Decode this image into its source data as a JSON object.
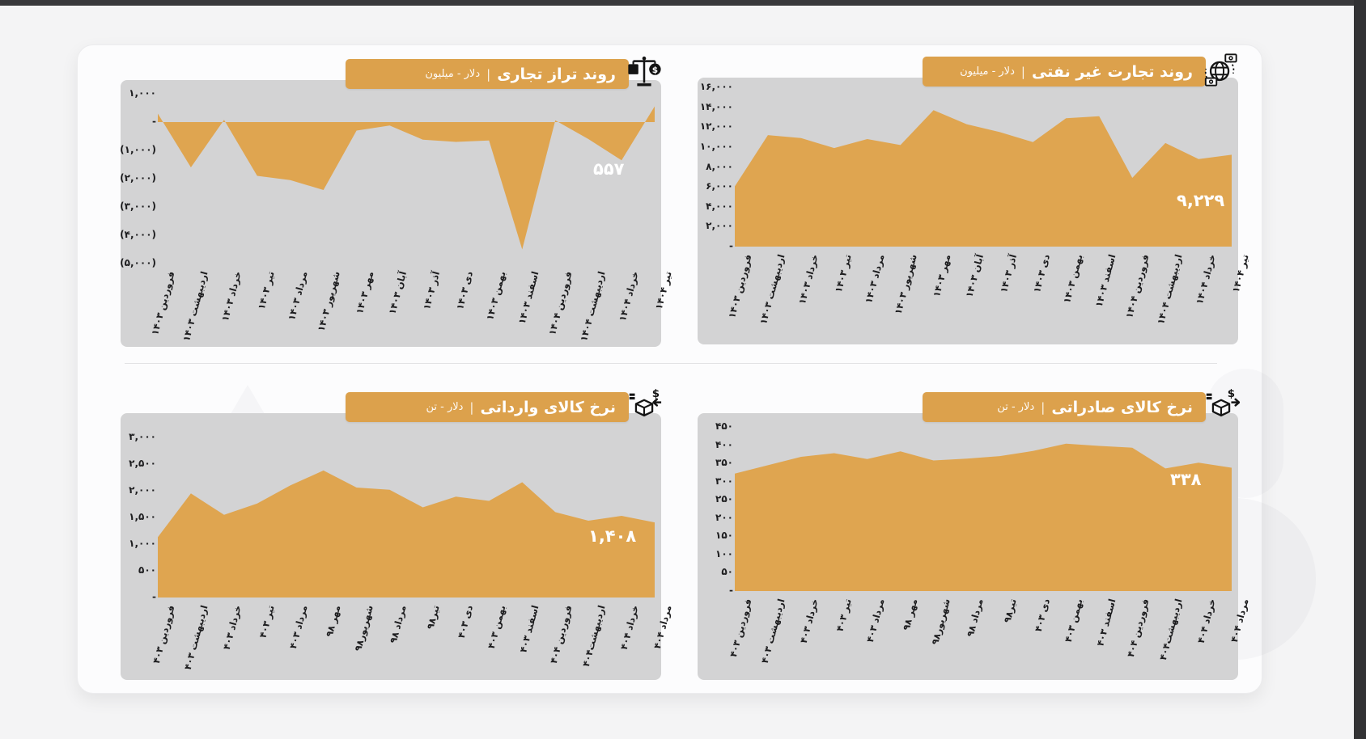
{
  "page": {
    "background": "#f4f4f5",
    "frame_top_color": "#39393b",
    "frame_right_color": "#323234",
    "card_color": "#fcfcfd",
    "panel_color": "#d3d3d4",
    "titlebar_color": "#dca14c",
    "area_color": "#dfa550",
    "icon_color": "#141414",
    "title_separator": "|"
  },
  "chart_data": [
    {
      "id": "trade-balance-trend",
      "type": "area",
      "title": "روند تراز تجاری",
      "unit": "دلار - میلیون",
      "icon": "balance-scale-dollar-icon",
      "value_label": "۵۵۷",
      "latest_value": 557,
      "baseline": "zero",
      "ylim": [
        -5000,
        1000
      ],
      "grid": false,
      "legend": false,
      "y_ticks": [
        {
          "label": "۱,۰۰۰",
          "value": 1000
        },
        {
          "label": "-",
          "value": 0
        },
        {
          "label": "(۱,۰۰۰)",
          "value": -1000
        },
        {
          "label": "(۲,۰۰۰)",
          "value": -2000
        },
        {
          "label": "(۳,۰۰۰)",
          "value": -3000
        },
        {
          "label": "(۴,۰۰۰)",
          "value": -4000
        },
        {
          "label": "(۵,۰۰۰)",
          "value": -5000
        }
      ],
      "categories": [
        "فروردین ۱۴۰۳",
        "اردیبهشت ۱۴۰۳",
        "خرداد ۱۴۰۳",
        "تیر ۱۴۰۳",
        "مرداد ۱۴۰۳",
        "شهریور ۱۴۰۳",
        "مهر ۱۴۰۳",
        "آبان ۱۴۰۳",
        "آذر ۱۴۰۳",
        "دی ۱۴۰۳",
        "بهمن ۱۴۰۳",
        "اسفند ۱۴۰۳",
        "فروردین ۱۴۰۴",
        "اردیبهشت ۱۴۰۴",
        "خرداد ۱۴۰۴",
        "تیر ۱۴۰۴"
      ],
      "values": [
        300,
        -1600,
        80,
        -1900,
        -2050,
        -2400,
        -300,
        -120,
        -620,
        -700,
        -650,
        -4500,
        60,
        -600,
        -1350,
        557
      ]
    },
    {
      "id": "non-oil-trade-trend",
      "type": "area",
      "title": "روند تجارت غیر نفتی",
      "unit": "دلار - میلیون",
      "icon": "globe-money-icon",
      "value_label": "۹,۲۲۹",
      "latest_value": 9229,
      "baseline": "bottom",
      "ylim": [
        0,
        16000
      ],
      "grid": false,
      "legend": false,
      "y_ticks": [
        {
          "label": "۱۶,۰۰۰",
          "value": 16000
        },
        {
          "label": "۱۴,۰۰۰",
          "value": 14000
        },
        {
          "label": "۱۲,۰۰۰",
          "value": 12000
        },
        {
          "label": "۱۰,۰۰۰",
          "value": 10000
        },
        {
          "label": "۸,۰۰۰",
          "value": 8000
        },
        {
          "label": "۶,۰۰۰",
          "value": 6000
        },
        {
          "label": "۴,۰۰۰",
          "value": 4000
        },
        {
          "label": "۲,۰۰۰",
          "value": 2000
        },
        {
          "label": "-",
          "value": 0
        }
      ],
      "categories": [
        "فروردین ۱۴۰۳",
        "اردیبهشت ۱۴۰۳",
        "خرداد ۱۴۰۳",
        "تیر ۱۴۰۳",
        "مرداد ۱۴۰۳",
        "شهریور ۱۴۰۳",
        "مهر ۱۴۰۳",
        "آبان ۱۴۰۳",
        "آذر ۱۴۰۳",
        "دی ۱۴۰۳",
        "بهمن ۱۴۰۳",
        "اسفند ۱۴۰۳",
        "فروردین ۱۴۰۴",
        "اردیبهشت ۱۴۰۴",
        "خرداد ۱۴۰۴",
        "تیر ۱۴۰۴"
      ],
      "values": [
        6050,
        11200,
        10900,
        9900,
        10800,
        10200,
        13700,
        12300,
        11500,
        10500,
        12900,
        13100,
        6900,
        10400,
        8800,
        9229
      ]
    },
    {
      "id": "import-goods-rate",
      "type": "area",
      "title": "نرخ کالای وارداتی",
      "unit": "دلار - تن",
      "icon": "import-box-dollar-icon",
      "value_label": "۱,۴۰۸",
      "latest_value": 1408,
      "baseline": "bottom",
      "ylim": [
        0,
        3000
      ],
      "grid": false,
      "legend": false,
      "y_ticks": [
        {
          "label": "۳,۰۰۰",
          "value": 3000
        },
        {
          "label": "۲,۵۰۰",
          "value": 2500
        },
        {
          "label": "۲,۰۰۰",
          "value": 2000
        },
        {
          "label": "۱,۵۰۰",
          "value": 1500
        },
        {
          "label": "۱,۰۰۰",
          "value": 1000
        },
        {
          "label": "۵۰۰",
          "value": 500
        },
        {
          "label": "-",
          "value": 0
        }
      ],
      "categories": [
        "فروردین ۴۰۳",
        "اردیبهشت ۴۰۳",
        "خرداد ۴۰۳",
        "تیر ۴۰۳",
        "مرداد ۴۰۳",
        "مهر ۹۸",
        "شهریور۹۸",
        "مرداد ۹۸",
        "تیر۹۸",
        "دی ۴۰۳",
        "بهمن ۴۰۳",
        "اسفند ۴۰۳",
        "فروردین ۴۰۴",
        "اردیبهشت۴۰۴",
        "خرداد ۴۰۴",
        "مرداد ۴۰۴"
      ],
      "values": [
        1130,
        1950,
        1550,
        1760,
        2100,
        2380,
        2060,
        2020,
        1690,
        1890,
        1810,
        2160,
        1600,
        1440,
        1530,
        1408
      ]
    },
    {
      "id": "export-goods-rate",
      "type": "area",
      "title": "نرخ کالای صادراتی",
      "unit": "دلار - تن",
      "icon": "export-box-dollar-icon",
      "value_label": "۳۳۸",
      "latest_value": 338,
      "baseline": "bottom",
      "ylim": [
        0,
        450
      ],
      "grid": false,
      "legend": false,
      "y_ticks": [
        {
          "label": "۴۵۰",
          "value": 450
        },
        {
          "label": "۴۰۰",
          "value": 400
        },
        {
          "label": "۳۵۰",
          "value": 350
        },
        {
          "label": "۳۰۰",
          "value": 300
        },
        {
          "label": "۲۵۰",
          "value": 250
        },
        {
          "label": "۲۰۰",
          "value": 200
        },
        {
          "label": "۱۵۰",
          "value": 150
        },
        {
          "label": "۱۰۰",
          "value": 100
        },
        {
          "label": "۵۰",
          "value": 50
        },
        {
          "label": "-",
          "value": 0
        }
      ],
      "categories": [
        "فروردین ۴۰۳",
        "اردیبهشت ۴۰۳",
        "خرداد ۴۰۳",
        "تیر ۴۰۳",
        "مرداد ۴۰۳",
        "مهر ۹۸",
        "شهریور۹۸",
        "مرداد ۹۸",
        "تیر۹۸",
        "دی ۴۰۳",
        "بهمن ۴۰۳",
        "اسفند ۴۰۳",
        "فروردین ۴۰۴",
        "اردیبهشت۴۰۴",
        "خرداد ۴۰۴",
        "مرداد ۴۰۴"
      ],
      "values": [
        322,
        345,
        368,
        378,
        362,
        383,
        358,
        363,
        370,
        384,
        404,
        398,
        393,
        336,
        352,
        338
      ]
    }
  ]
}
